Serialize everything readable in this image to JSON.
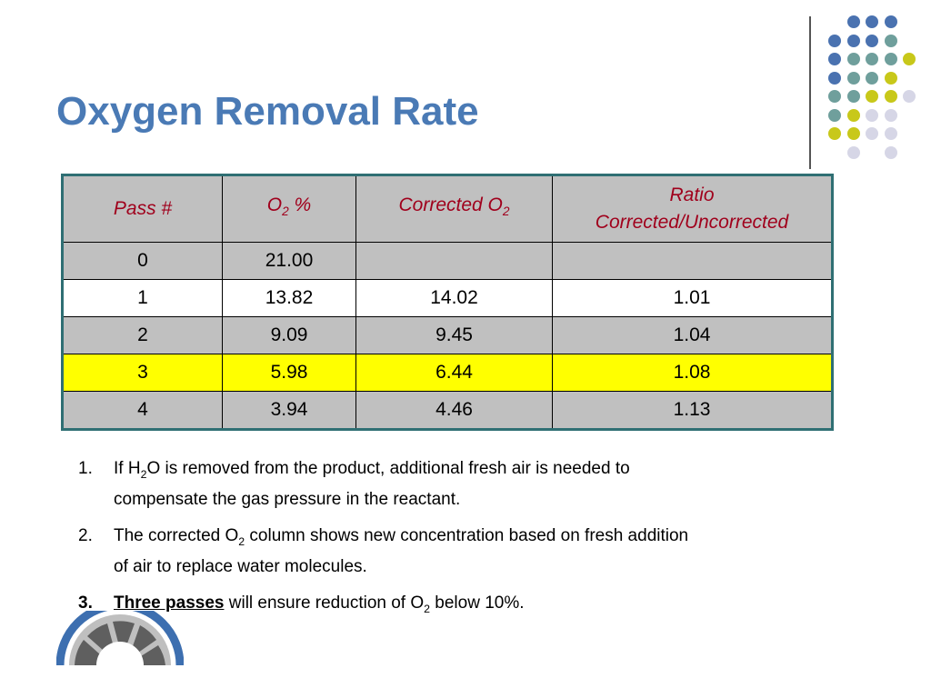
{
  "title": "Oxygen Removal Rate",
  "colors": {
    "title": "#4a7ab5",
    "header_text": "#a0001c",
    "row_gray": "#c0c0c0",
    "row_highlight": "#ffff00",
    "table_border": "#2f6f73",
    "dot_blue": "#4a72b0",
    "dot_teal": "#6f9f9c",
    "dot_yellow": "#c8c81a",
    "dot_lavender": "#d6d6e6"
  },
  "table": {
    "headers": {
      "pass": "Pass #",
      "o2_main": "O",
      "o2_sub": "2",
      "o2_suffix": " %",
      "corr_main": "Corrected O",
      "corr_sub": "2",
      "ratio_line1": "Ratio",
      "ratio_line2": "Corrected/Uncorrected"
    },
    "rows": [
      {
        "pass": "0",
        "o2": "21.00",
        "corrected": "",
        "ratio": ""
      },
      {
        "pass": "1",
        "o2": "13.82",
        "corrected": "14.02",
        "ratio": "1.01"
      },
      {
        "pass": "2",
        "o2": "9.09",
        "corrected": "9.45",
        "ratio": "1.04"
      },
      {
        "pass": "3",
        "o2": "5.98",
        "corrected": "6.44",
        "ratio": "1.08"
      },
      {
        "pass": "4",
        "o2": "3.94",
        "corrected": "4.46",
        "ratio": "1.13"
      }
    ]
  },
  "notes": {
    "n1": {
      "num": "1.",
      "a": "If H",
      "sub": "2",
      "b": "O is removed from the product, additional fresh air is needed to",
      "c": "compensate the gas pressure in the reactant."
    },
    "n2": {
      "num": "2.",
      "a": "The corrected O",
      "sub": "2",
      "b": " column shows new concentration based on fresh addition",
      "c": "of air to replace water molecules."
    },
    "n3": {
      "num": "3.",
      "emph": "Three passes",
      "a": " will ensure reduction of O",
      "sub": "2",
      "b": " below 10%."
    }
  },
  "decoration": {
    "dot_grid": [
      [
        null,
        "blue",
        "blue",
        "blue",
        null,
        null
      ],
      [
        "blue",
        "blue",
        "blue",
        "teal",
        null,
        null
      ],
      [
        "blue",
        "teal",
        "teal",
        "teal",
        "yellow",
        null
      ],
      [
        "blue",
        "teal",
        "teal",
        "yellow",
        null,
        null
      ],
      [
        "teal",
        "teal",
        "yellow",
        "yellow",
        "lavender",
        null
      ],
      [
        "teal",
        "yellow",
        "lavender",
        "lavender",
        null,
        null
      ],
      [
        "yellow",
        "yellow",
        "lavender",
        "lavender",
        null,
        null
      ],
      [
        null,
        "lavender",
        null,
        "lavender",
        null,
        null
      ]
    ]
  }
}
